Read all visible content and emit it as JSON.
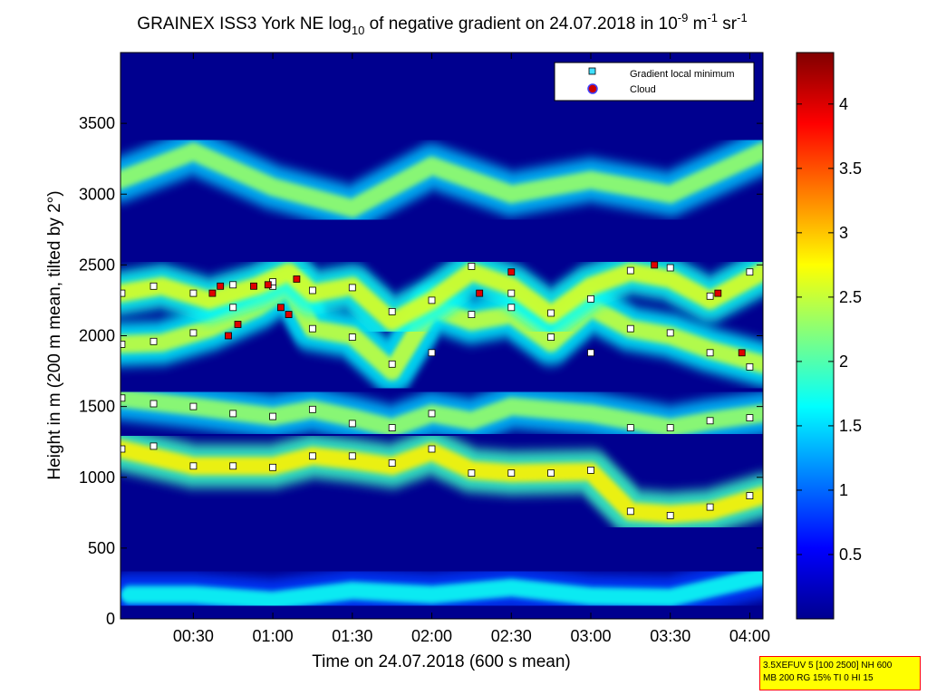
{
  "title": {
    "prefix": "GRAINEX ISS3 York NE log",
    "prefix_sub": "10",
    "middle": " of negative gradient on 24.07.2018 in 10",
    "exp1": "-9",
    "unit_m": " m",
    "exp2": "-1",
    "unit_sr": " sr",
    "exp3": "-1"
  },
  "axes": {
    "xlabel": "Time on 24.07.2018 (600 s mean)",
    "ylabel": "Height in m (200 m mean, tilted by 2°)",
    "x_range_hours": [
      0.042,
      4.083
    ],
    "y_range": [
      0,
      4000
    ],
    "x_ticks": [
      "00:30",
      "01:00",
      "01:30",
      "02:00",
      "02:30",
      "03:00",
      "03:30",
      "04:00"
    ],
    "y_ticks": [
      "0",
      "500",
      "1000",
      "1500",
      "2000",
      "2500",
      "3000",
      "3500"
    ]
  },
  "colorbar": {
    "range": [
      0,
      4.4
    ],
    "ticks": [
      "0.5",
      "1",
      "1.5",
      "2",
      "2.5",
      "3",
      "3.5",
      "4"
    ],
    "colormap": "jet"
  },
  "legend": {
    "placement": "top-right",
    "items": [
      {
        "label": "Gradient local minimum",
        "color": "#40e0ff",
        "marker": "square"
      },
      {
        "label": "Cloud",
        "color": "#cc0000",
        "marker": "circle"
      }
    ]
  },
  "info_box": {
    "line1": "3.5XEFUV 5 [100 2500] NH 600",
    "line2": "MB 200 RG 15% TI 0 HI 15"
  },
  "chart_data": {
    "type": "heatmap",
    "title": "GRAINEX ISS3 York NE log10 of negative gradient on 24.07.2018 in 10^-9 m^-1 sr^-1",
    "xlabel": "Time on 24.07.2018 (600 s mean)",
    "ylabel": "Height in m (200 m mean, tilted by 2°)",
    "x_unit": "hours of day",
    "xlim": [
      0.042,
      4.083
    ],
    "ylim": [
      0,
      4000
    ],
    "clim": [
      0,
      4.4
    ],
    "layers": [
      {
        "name": "boundary layer top",
        "points": [
          [
            0.04,
            1200
          ],
          [
            0.5,
            1080
          ],
          [
            1.0,
            1080
          ],
          [
            1.25,
            1150
          ],
          [
            1.5,
            1120
          ],
          [
            1.75,
            1080
          ],
          [
            2.0,
            1180
          ],
          [
            2.25,
            1050
          ],
          [
            2.5,
            1030
          ],
          [
            3.0,
            1040
          ],
          [
            3.25,
            760
          ],
          [
            3.5,
            740
          ],
          [
            3.75,
            760
          ],
          [
            4.08,
            870
          ]
        ],
        "level": 2.8
      },
      {
        "name": "lower residual layer",
        "points": [
          [
            0.04,
            1560
          ],
          [
            0.5,
            1500
          ],
          [
            1.0,
            1430
          ],
          [
            1.25,
            1480
          ],
          [
            1.5,
            1420
          ],
          [
            1.75,
            1350
          ],
          [
            2.0,
            1450
          ],
          [
            2.25,
            1400
          ],
          [
            2.5,
            1500
          ],
          [
            3.0,
            1450
          ],
          [
            3.25,
            1400
          ],
          [
            3.5,
            1350
          ],
          [
            3.75,
            1400
          ],
          [
            4.08,
            1450
          ]
        ],
        "level": 2.3
      },
      {
        "name": "middle layer",
        "points": [
          [
            0.04,
            1940
          ],
          [
            0.3,
            1950
          ],
          [
            0.6,
            2050
          ],
          [
            0.9,
            2200
          ],
          [
            1.1,
            2350
          ],
          [
            1.25,
            2050
          ],
          [
            1.5,
            2000
          ],
          [
            1.75,
            1750
          ],
          [
            2.0,
            2200
          ],
          [
            2.25,
            2100
          ],
          [
            2.5,
            2150
          ],
          [
            2.75,
            1950
          ],
          [
            3.0,
            2200
          ],
          [
            3.25,
            2050
          ],
          [
            3.5,
            2000
          ],
          [
            3.75,
            1900
          ],
          [
            4.08,
            1800
          ]
        ],
        "level": 2.5
      },
      {
        "name": "upper layer",
        "points": [
          [
            0.04,
            2300
          ],
          [
            0.3,
            2350
          ],
          [
            0.6,
            2250
          ],
          [
            0.9,
            2350
          ],
          [
            1.1,
            2450
          ],
          [
            1.25,
            2300
          ],
          [
            1.5,
            2350
          ],
          [
            1.75,
            2100
          ],
          [
            2.0,
            2250
          ],
          [
            2.25,
            2450
          ],
          [
            2.5,
            2350
          ],
          [
            2.75,
            2150
          ],
          [
            3.0,
            2350
          ],
          [
            3.25,
            2450
          ],
          [
            3.5,
            2400
          ],
          [
            3.75,
            2250
          ],
          [
            4.08,
            2450
          ]
        ],
        "level": 2.6
      },
      {
        "name": "high aerosol",
        "points": [
          [
            0.04,
            3100
          ],
          [
            0.5,
            3300
          ],
          [
            1.0,
            3050
          ],
          [
            1.5,
            2900
          ],
          [
            2.0,
            3200
          ],
          [
            2.5,
            3000
          ],
          [
            3.0,
            3100
          ],
          [
            3.5,
            3000
          ],
          [
            4.08,
            3300
          ]
        ],
        "level": 2.3
      },
      {
        "name": "near-surface band",
        "points": [
          [
            0.1,
            170
          ],
          [
            0.5,
            170
          ],
          [
            1.0,
            130
          ],
          [
            1.5,
            200
          ],
          [
            2.0,
            170
          ],
          [
            2.5,
            220
          ],
          [
            3.0,
            160
          ],
          [
            3.5,
            150
          ],
          [
            4.08,
            300
          ]
        ],
        "level": 1.7
      }
    ],
    "gradient_local_minimum_series": [
      {
        "name": "boundary layer",
        "x": [
          0.05,
          0.25,
          0.5,
          0.75,
          1.0,
          1.25,
          1.5,
          1.75,
          2.0,
          2.25,
          2.5,
          2.75,
          3.0,
          3.25,
          3.5,
          3.75,
          4.0
        ],
        "y": [
          1200,
          1220,
          1080,
          1080,
          1070,
          1150,
          1150,
          1100,
          1200,
          1030,
          1030,
          1030,
          1050,
          760,
          730,
          790,
          870
        ]
      },
      {
        "name": "residual layer",
        "x": [
          0.05,
          0.25,
          0.5,
          0.75,
          1.0,
          1.25,
          1.5,
          1.75,
          2.0,
          3.25,
          3.5,
          3.75,
          4.0
        ],
        "y": [
          1560,
          1520,
          1500,
          1450,
          1430,
          1480,
          1380,
          1350,
          1450,
          1350,
          1350,
          1400,
          1420
        ]
      },
      {
        "name": "middle layer",
        "x": [
          0.05,
          0.25,
          0.5,
          0.75,
          1.0,
          1.25,
          1.5,
          1.75,
          2.0,
          2.25,
          2.5,
          2.75,
          3.0,
          3.25,
          3.5,
          3.75,
          4.0
        ],
        "y": [
          1940,
          1960,
          2020,
          2200,
          2350,
          2050,
          1990,
          1800,
          1880,
          2150,
          2200,
          1990,
          1880,
          2050,
          2020,
          1880,
          1780
        ]
      },
      {
        "name": "upper layer",
        "x": [
          0.05,
          0.25,
          0.5,
          0.75,
          1.0,
          1.25,
          1.5,
          1.75,
          2.0,
          2.25,
          2.5,
          2.75,
          3.0,
          3.25,
          3.5,
          3.75,
          4.0
        ],
        "y": [
          2300,
          2350,
          2300,
          2360,
          2380,
          2320,
          2340,
          2170,
          2250,
          2490,
          2300,
          2160,
          2260,
          2460,
          2480,
          2280,
          2450
        ]
      }
    ],
    "cloud_series": {
      "x": [
        0.62,
        0.67,
        0.72,
        0.78,
        0.88,
        0.97,
        1.05,
        1.1,
        1.15,
        2.3,
        2.5,
        3.4,
        3.8,
        3.95
      ],
      "y": [
        2300,
        2350,
        2000,
        2080,
        2350,
        2360,
        2200,
        2150,
        2400,
        2300,
        2450,
        2500,
        2300,
        1880
      ]
    },
    "colorbar": {
      "ticks": [
        0.5,
        1,
        1.5,
        2,
        2.5,
        3,
        3.5,
        4
      ],
      "colormap": "jet"
    }
  }
}
